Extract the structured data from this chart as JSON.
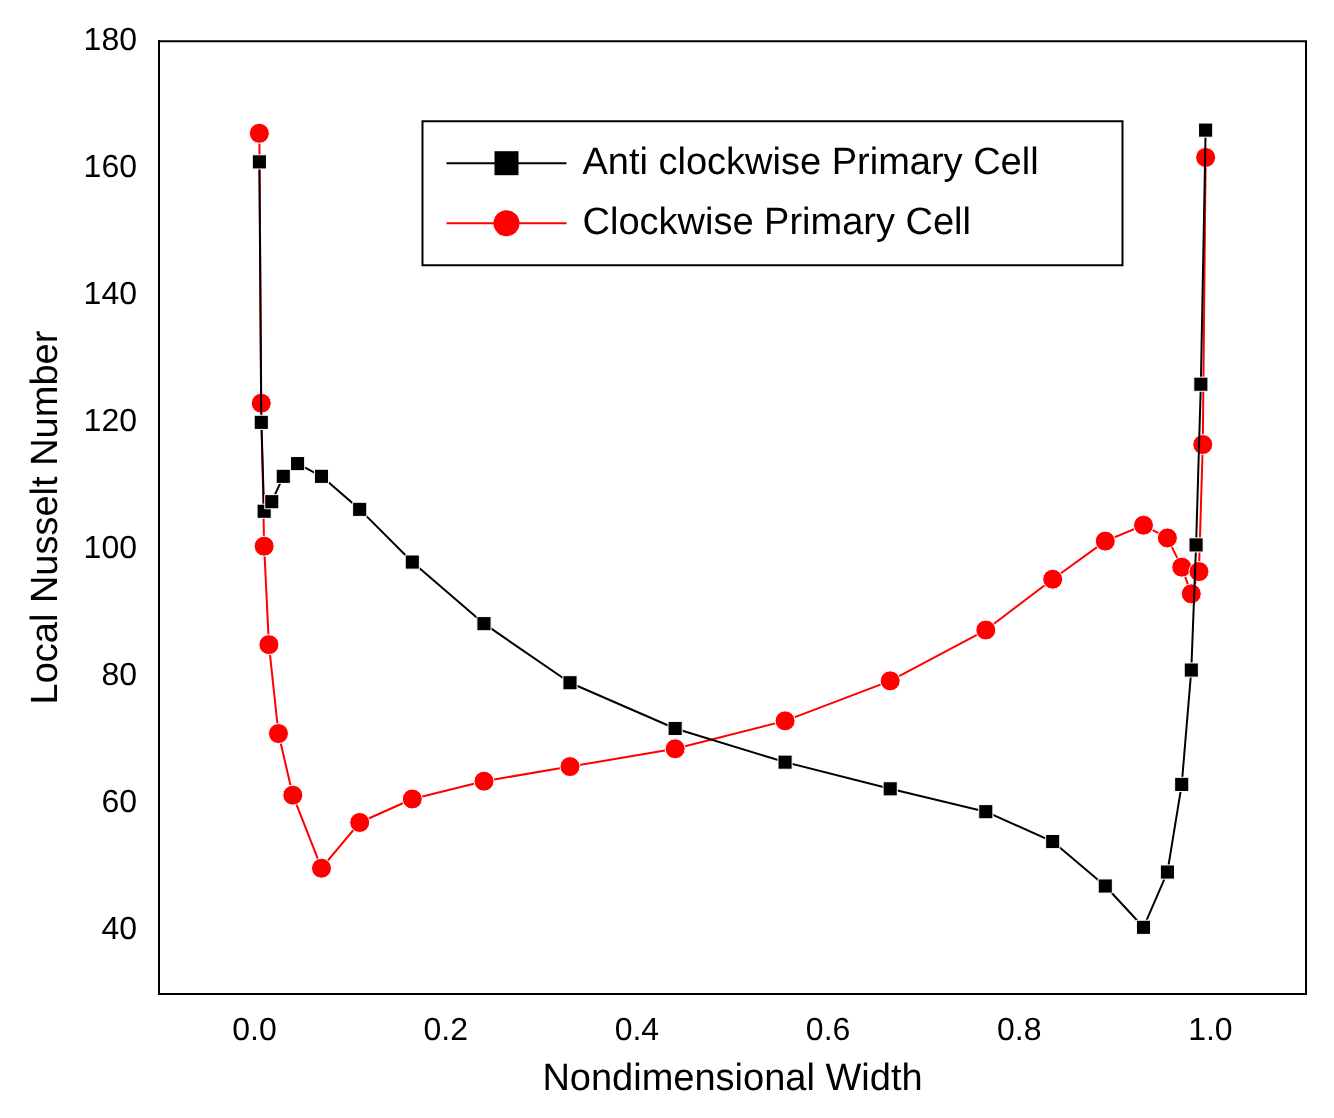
{
  "chart_data": {
    "type": "line",
    "xlabel": "Nondimensional Width",
    "ylabel": "Local Nusselt Number",
    "xlim": [
      -0.1,
      1.1
    ],
    "xticks": [
      {
        "value": 0,
        "label": "0.0"
      },
      0.2,
      0.4,
      0.6,
      0.8,
      {
        "value": 1,
        "label": "1.0"
      }
    ],
    "ylim": [
      30,
      180
    ],
    "yticks": [
      40,
      60,
      80,
      100,
      120,
      140,
      160,
      180
    ],
    "legend": "top",
    "grid": false,
    "series": [
      {
        "name": "Anti clockwise Primary Cell",
        "color": "#000000",
        "marker": "square",
        "x": [
          0.005,
          0.007,
          0.01,
          0.018,
          0.03,
          0.045,
          0.07,
          0.11,
          0.165,
          0.24,
          0.33,
          0.44,
          0.555,
          0.665,
          0.765,
          0.835,
          0.89,
          0.93,
          0.955,
          0.97,
          0.98,
          0.985,
          0.99,
          0.995
        ],
        "values": [
          161,
          120,
          106,
          107.5,
          111.5,
          113.5,
          111.5,
          106.3,
          98,
          88.3,
          79,
          71.8,
          66.5,
          62.3,
          58.7,
          54,
          47,
          40.5,
          49.2,
          63,
          81,
          100.7,
          126,
          166
        ]
      },
      {
        "name": "Clockwise Primary Cell",
        "color": "#ff0000",
        "marker": "circle",
        "x": [
          0.005,
          0.007,
          0.01,
          0.015,
          0.025,
          0.04,
          0.07,
          0.11,
          0.165,
          0.24,
          0.33,
          0.44,
          0.555,
          0.665,
          0.765,
          0.835,
          0.89,
          0.93,
          0.955,
          0.97,
          0.98,
          0.988,
          0.992,
          0.995
        ],
        "values": [
          165.5,
          123,
          100.5,
          85,
          71,
          61.3,
          49.8,
          57,
          60.7,
          63.5,
          65.8,
          68.6,
          73,
          79.3,
          87.3,
          95.3,
          101.3,
          103.8,
          101.8,
          97.2,
          93,
          96.5,
          116.5,
          161.7
        ]
      }
    ]
  }
}
